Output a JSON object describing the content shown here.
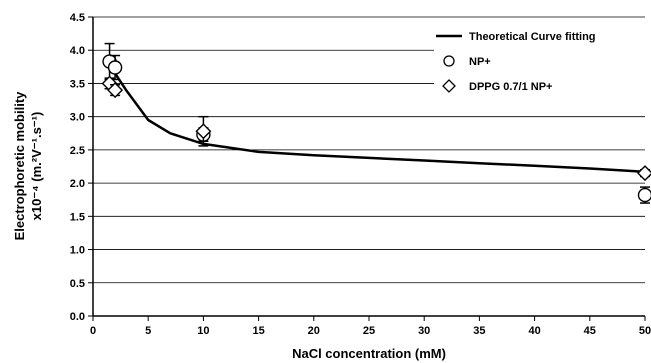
{
  "chart_data": {
    "type": "scatter",
    "xlabel": "NaCl concentration (mM)",
    "ylabel_line1": "Electrophoretic mobility",
    "ylabel_line2": "x10⁻⁴ (m.²V⁻¹.s⁻¹)",
    "xlim": [
      0,
      50
    ],
    "ylim": [
      0,
      4.5
    ],
    "xticks": [
      0,
      5,
      10,
      15,
      20,
      25,
      30,
      35,
      40,
      45,
      50
    ],
    "yticks": [
      0.0,
      0.5,
      1.0,
      1.5,
      2.0,
      2.5,
      3.0,
      3.5,
      4.0,
      4.5
    ],
    "grid": "horizontal",
    "legend_position": "top-right",
    "series": [
      {
        "name": "Theoretical Curve fitting",
        "kind": "line",
        "color": "#000000",
        "points": [
          [
            1.6,
            3.75
          ],
          [
            3,
            3.4
          ],
          [
            5,
            2.95
          ],
          [
            7,
            2.75
          ],
          [
            10,
            2.59
          ],
          [
            15,
            2.47
          ],
          [
            20,
            2.42
          ],
          [
            25,
            2.38
          ],
          [
            30,
            2.34
          ],
          [
            35,
            2.3
          ],
          [
            40,
            2.26
          ],
          [
            45,
            2.22
          ],
          [
            50,
            2.17
          ]
        ]
      },
      {
        "name": "NP+",
        "kind": "marker",
        "marker": "circle",
        "points": [
          [
            1.5,
            3.83,
            0.27
          ],
          [
            2,
            3.74,
            0.18
          ],
          [
            10,
            2.73,
            0.1
          ],
          [
            50,
            1.82,
            0.12
          ]
        ]
      },
      {
        "name": "DPPG 0.7/1 NP+",
        "kind": "marker",
        "marker": "diamond",
        "points": [
          [
            1.5,
            3.5,
            0.08
          ],
          [
            2,
            3.4,
            0.08
          ],
          [
            10,
            2.78,
            0.22
          ],
          [
            50,
            2.15,
            0.05
          ]
        ]
      }
    ]
  }
}
